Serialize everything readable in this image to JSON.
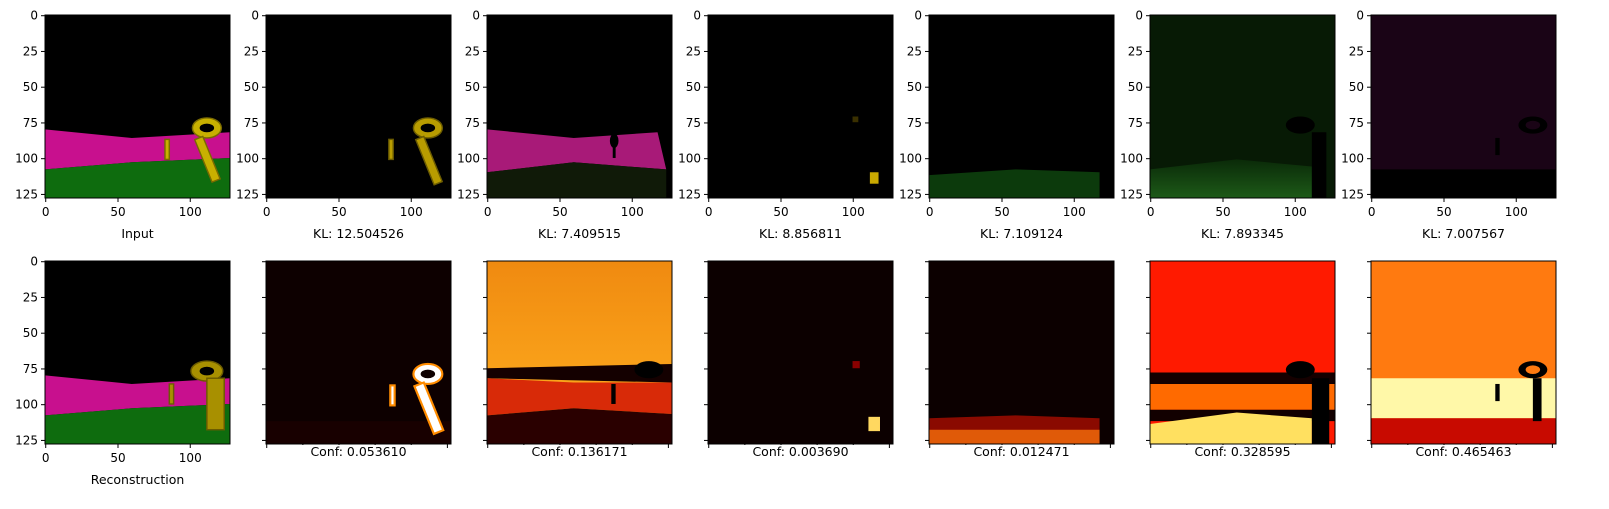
{
  "chart_data": [
    {
      "type": "image_grid",
      "row": "top",
      "x_ticks": [
        0,
        50,
        100
      ],
      "y_ticks": [
        0,
        25,
        50,
        75,
        100,
        125
      ],
      "xlim": [
        0,
        128
      ],
      "ylim": [
        128,
        0
      ],
      "panels": [
        {
          "caption": "Input",
          "image": "rgb scene: black background, magenta floor, green ground, yellow key"
        },
        {
          "caption": "KL: 12.504526",
          "image": "slot mask: key"
        },
        {
          "caption": "KL: 7.409515",
          "image": "slot mask: magenta floor"
        },
        {
          "caption": "KL: 8.856811",
          "image": "slot mask: small object"
        },
        {
          "caption": "KL: 7.109124",
          "image": "slot mask: green ground"
        },
        {
          "caption": "KL: 7.893345",
          "image": "slot mask: green ground (dim)"
        },
        {
          "caption": "KL: 7.007567",
          "image": "slot mask: purple background"
        }
      ]
    },
    {
      "type": "heatmap_grid",
      "row": "bottom",
      "x_ticks": [
        0,
        50,
        100
      ],
      "y_ticks": [
        0,
        25,
        50,
        75,
        100,
        125
      ],
      "colormap": "hot",
      "panels": [
        {
          "caption": "Reconstruction",
          "image": "rgb reconstruction of input scene"
        },
        {
          "caption": "Conf: 0.053610",
          "confidence": 0.05361
        },
        {
          "caption": "Conf: 0.136171",
          "confidence": 0.136171
        },
        {
          "caption": "Conf: 0.003690",
          "confidence": 0.00369
        },
        {
          "caption": "Conf: 0.012471",
          "confidence": 0.012471
        },
        {
          "caption": "Conf: 0.328595",
          "confidence": 0.328595
        },
        {
          "caption": "Conf: 0.465463",
          "confidence": 0.465463
        }
      ]
    }
  ]
}
